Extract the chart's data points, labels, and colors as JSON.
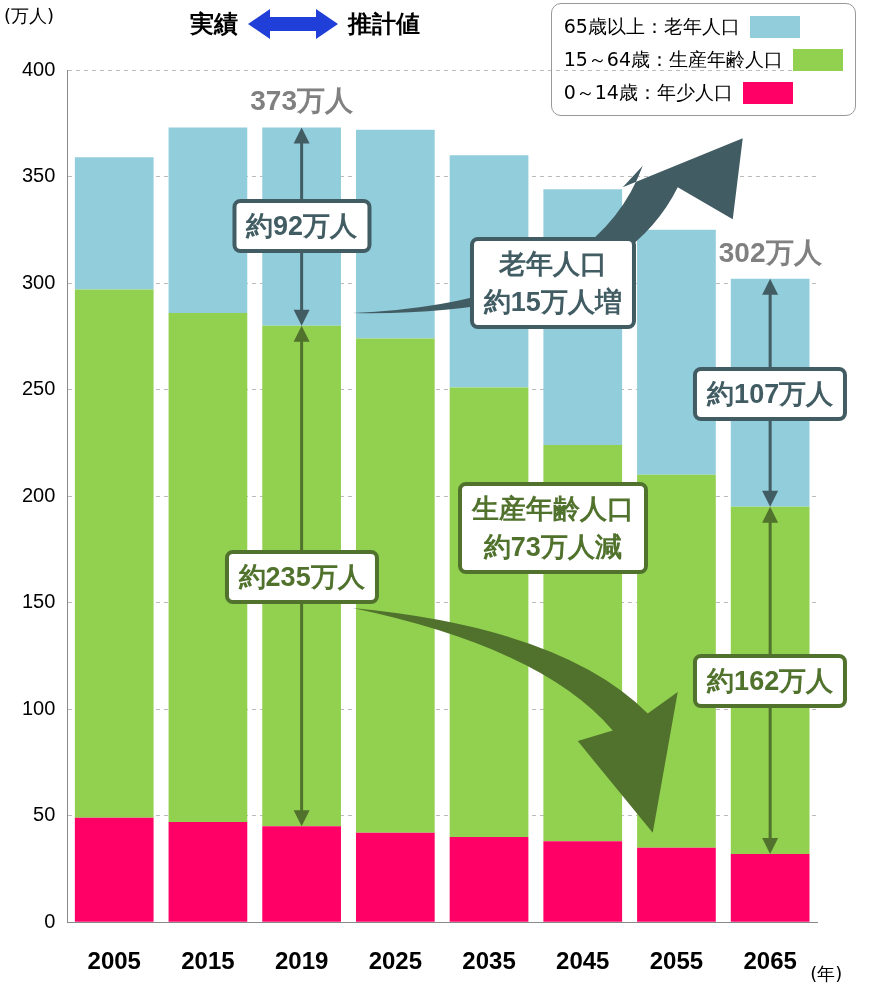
{
  "chart_data": {
    "type": "bar",
    "stacked": true,
    "ylabel": "(万人)",
    "xlabel": "(年)",
    "categories": [
      "2005",
      "2015",
      "2019",
      "2025",
      "2035",
      "2045",
      "2055",
      "2065"
    ],
    "series": [
      {
        "name": "0～14歳：年少人口",
        "color": "#ff0066",
        "values": [
          49,
          47,
          45,
          42,
          40,
          38,
          35,
          32
        ]
      },
      {
        "name": "15～64歳：生産年齢人口",
        "color": "#92d050",
        "values": [
          248,
          239,
          235,
          232,
          211,
          186,
          175,
          163
        ]
      },
      {
        "name": "65歳以上：老年人口",
        "color": "#92cddc",
        "values": [
          62,
          87,
          93,
          98,
          109,
          120,
          115,
          107
        ]
      }
    ],
    "ylim": [
      0,
      400
    ],
    "yticks": [
      0,
      50,
      100,
      150,
      200,
      250,
      300,
      350,
      400
    ],
    "grid": "y",
    "legend": "top right",
    "annotations": [
      "実績",
      "推計値",
      "約92万人",
      "約235万人",
      "約107万人",
      "約162万人",
      "老年人口",
      "約15万人増",
      "生産年齢人口",
      "約73万人減",
      {
        "text": "373万人",
        "x": "2019",
        "y": 373
      },
      {
        "text": "302万人",
        "x": "2065",
        "y": 302
      }
    ]
  }
}
